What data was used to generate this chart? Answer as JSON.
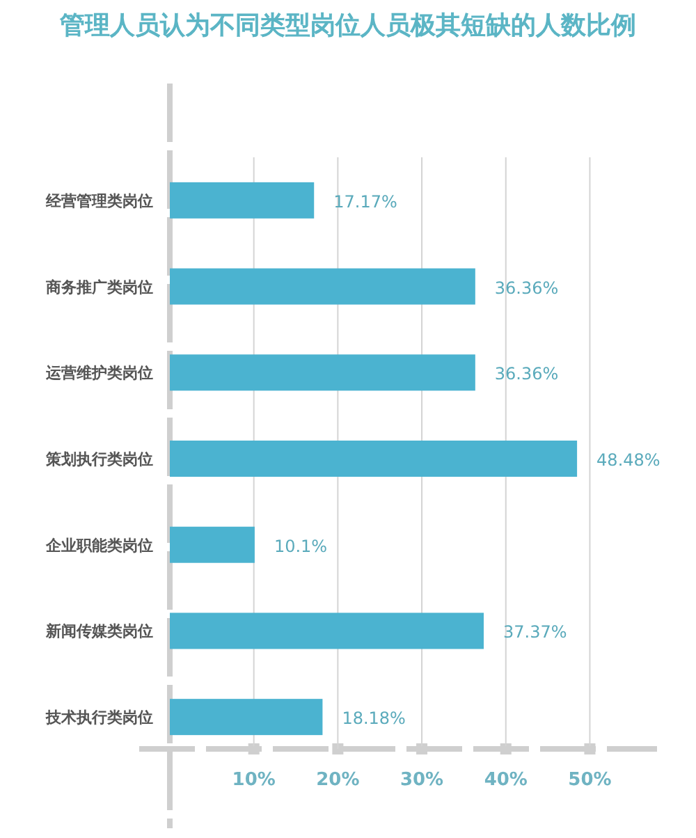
{
  "chart_data": {
    "type": "bar",
    "orientation": "horizontal",
    "title": "管理人员认为不同类型岗位人员极其短缺的人数比例",
    "categories": [
      "经营管理类岗位",
      "商务推广类岗位",
      "运营维护类岗位",
      "策划执行类岗位",
      "企业职能类岗位",
      "新闻传媒类岗位",
      "技术执行类岗位"
    ],
    "values": [
      17.17,
      36.36,
      36.36,
      48.48,
      10.1,
      37.37,
      18.18
    ],
    "value_labels": [
      "17.17%",
      "36.36%",
      "36.36%",
      "48.48%",
      "10.1%",
      "37.37%",
      "18.18%"
    ],
    "color": "#4bb3d0",
    "xlim": [
      0,
      58
    ],
    "xticks": [
      {
        "value": 10,
        "label": "10%"
      },
      {
        "value": 20,
        "label": "20%"
      },
      {
        "value": 30,
        "label": "30%"
      },
      {
        "value": 40,
        "label": "40%"
      },
      {
        "value": 50,
        "label": "50%"
      }
    ],
    "grid": "x"
  }
}
